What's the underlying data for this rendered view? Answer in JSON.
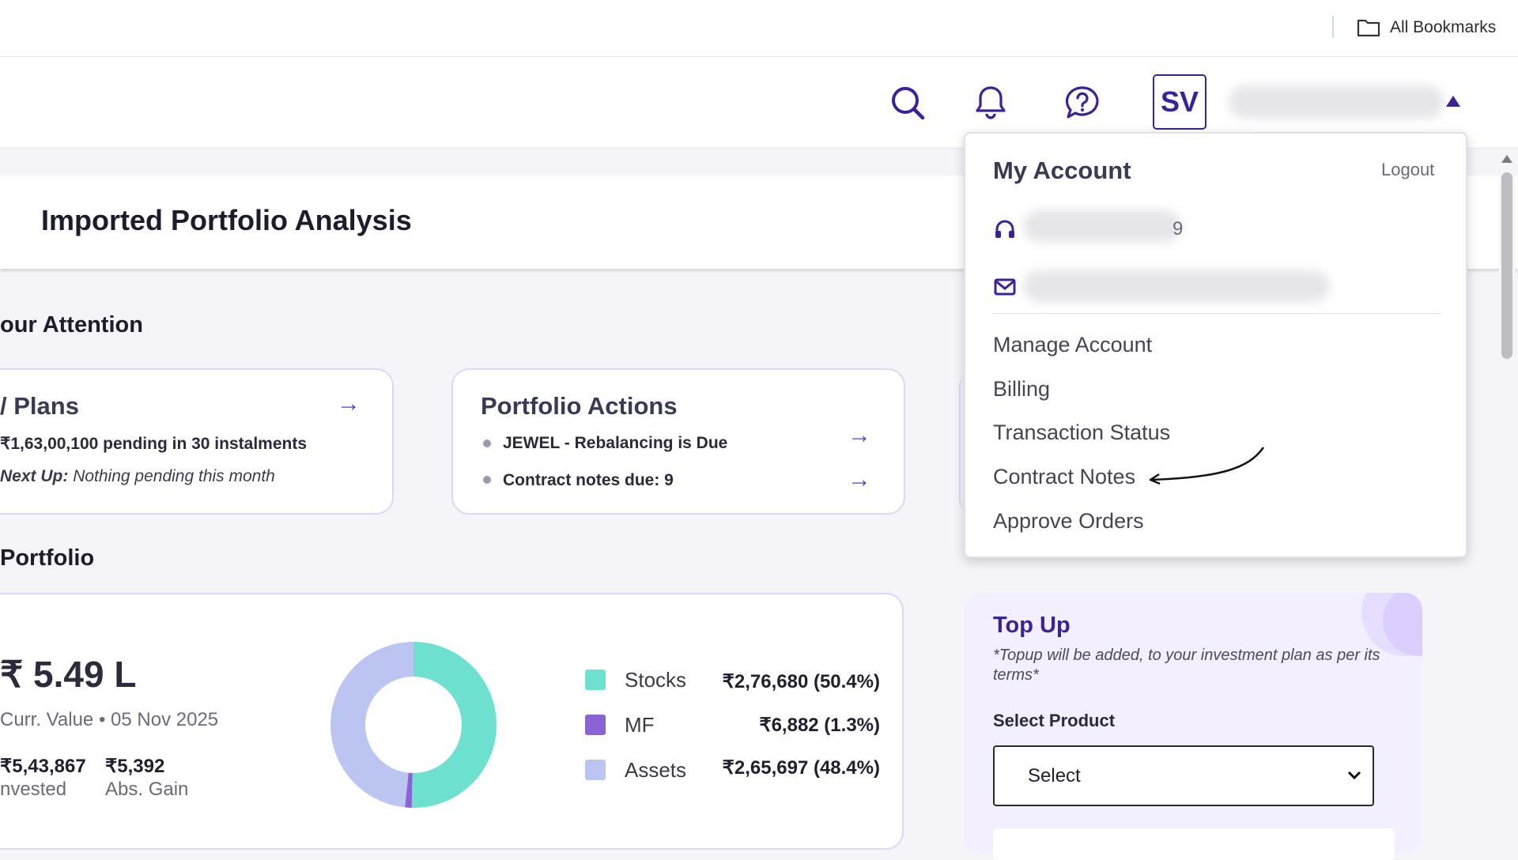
{
  "browser": {
    "bookmarks_label": "All Bookmarks"
  },
  "header": {
    "avatar_initials": "SV"
  },
  "page": {
    "title": "Imported Portfolio Analysis"
  },
  "attention": {
    "heading": "our Attention",
    "plans_card": {
      "title": "/ Plans",
      "pending": "₹1,63,00,100 pending in 30 instalments",
      "next_up_label": "Next Up:",
      "next_up_value": "Nothing pending this month"
    },
    "actions_card": {
      "title": "Portfolio Actions",
      "items": [
        "JEWEL - Rebalancing is Due",
        "Contract notes due: 9"
      ]
    }
  },
  "portfolio": {
    "heading": "Portfolio",
    "value": "₹ 5.49 L",
    "curr_label": "Curr. Value",
    "date": "05 Nov 2025",
    "invested_value": "₹5,43,867",
    "invested_label": "nvested",
    "gain_value": "₹5,392",
    "gain_label": "Abs. Gain",
    "legend": [
      {
        "label": "Stocks",
        "value": "₹2,76,680 (50.4%)",
        "color": "#6ee0cf"
      },
      {
        "label": "MF",
        "value": "₹6,882 (1.3%)",
        "color": "#8a63d2"
      },
      {
        "label": "Assets",
        "value": "₹2,65,697 (48.4%)",
        "color": "#bcc5f2"
      }
    ],
    "donut_pct": [
      50.4,
      1.3,
      48.4
    ]
  },
  "account_menu": {
    "title": "My Account",
    "logout": "Logout",
    "phone_suffix": "9",
    "items": [
      "Manage Account",
      "Billing",
      "Transaction Status",
      "Contract Notes",
      "Approve Orders"
    ]
  },
  "topup": {
    "title": "Top Up",
    "note": "*Topup will be added, to your investment plan as per its terms*",
    "select_label": "Select Product",
    "select_value": "Select"
  }
}
